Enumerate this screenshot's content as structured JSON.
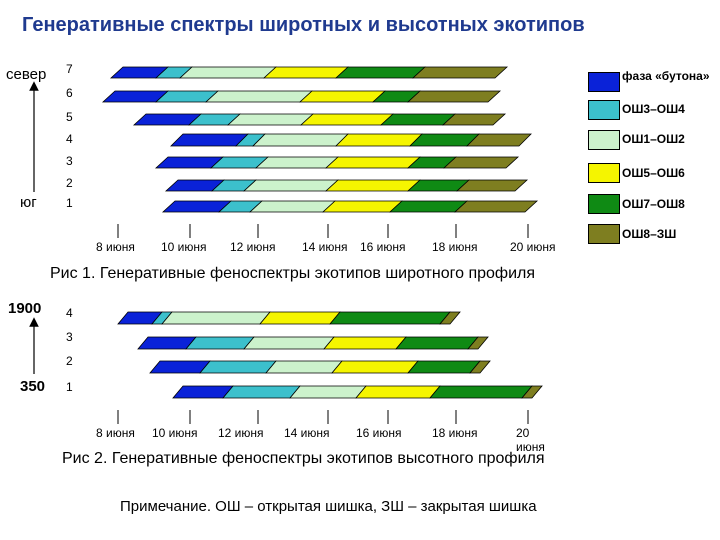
{
  "title": "Генеративные спектры широтных и высотных экотипов",
  "fig1": {
    "north_label": "север",
    "south_label": "юг",
    "row_labels": [
      "7",
      "6",
      "5",
      "4",
      "3",
      "2",
      "1"
    ],
    "ticks": [
      "8 июня",
      "10 июня",
      "12 июня",
      "14 июня",
      "16 июня",
      "18 июня",
      "20 июня"
    ],
    "caption": "Рис 1. Генеративные феноспектры экотипов широтного профиля"
  },
  "fig2": {
    "top_label": "1900",
    "bottom_label": "350",
    "row_labels": [
      "4",
      "3",
      "2",
      "1"
    ],
    "ticks": [
      "8 июня",
      "10 июня",
      "12 июня",
      "14 июня",
      "16 июня",
      "18 июня",
      "20 июня"
    ],
    "caption": "Рис 2. Генеративные феноспектры экотипов высотного профиля"
  },
  "legend": [
    {
      "label": "фаза «бутона»",
      "color": "#0a22d8"
    },
    {
      "label": "ОШ3–ОШ4",
      "color": "#3cc0cc"
    },
    {
      "label": "ОШ1–ОШ2",
      "color": "#ccf2cc"
    },
    {
      "label": "ОШ5–ОШ6",
      "color": "#f5f500"
    },
    {
      "label": "ОШ7–ОШ8",
      "color": "#0f8a14"
    },
    {
      "label": "ОШ8–ЗШ",
      "color": "#7e7e20"
    }
  ],
  "note": "Примечание. ОШ – открытая шишка, ЗШ – закрытая шишка"
}
